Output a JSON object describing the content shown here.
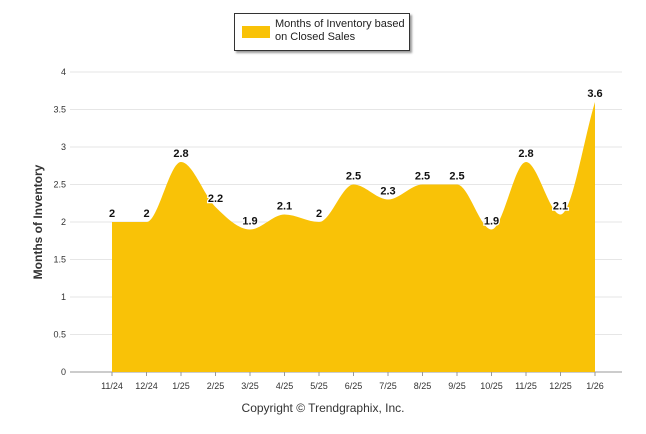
{
  "chart_data": {
    "type": "area",
    "categories": [
      "11/24",
      "12/24",
      "1/25",
      "2/25",
      "3/25",
      "4/25",
      "5/25",
      "6/25",
      "7/25",
      "8/25",
      "9/25",
      "10/25",
      "11/25",
      "12/25",
      "1/26"
    ],
    "values": [
      2,
      2,
      2.8,
      2.2,
      1.9,
      2.1,
      2,
      2.5,
      2.3,
      2.5,
      2.5,
      1.9,
      2.8,
      2.1,
      3.6
    ],
    "title": "",
    "xlabel": "",
    "ylabel": "Months of Inventory",
    "ylim": [
      0,
      4
    ],
    "yticks": [
      "0",
      "0.5",
      "1",
      "1.5",
      "2",
      "2.5",
      "3",
      "3.5",
      "4"
    ],
    "legend": "Months of Inventory based on Closed Sales",
    "legend_position": "top-center",
    "series_color": "#f9c207",
    "grid": true
  },
  "footer": "Copyright © Trendgraphix, Inc."
}
